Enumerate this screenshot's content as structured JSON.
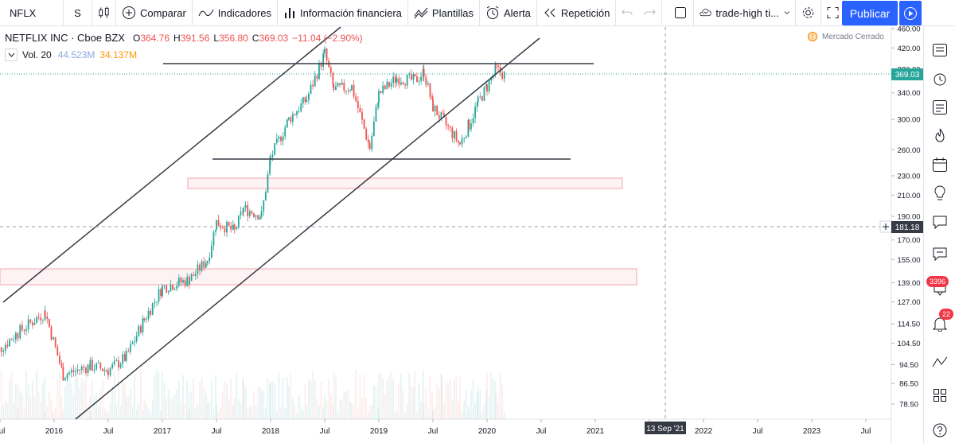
{
  "toolbar": {
    "symbol": "NFLX",
    "interval": "S",
    "compare": "Comparar",
    "indicators": "Indicadores",
    "financials": "Información financiera",
    "templates": "Plantillas",
    "alert": "Alerta",
    "replay": "Repetición",
    "layout_name": "trade-high ti...",
    "publish": "Publicar"
  },
  "legend": {
    "title": "NETFLIX INC · Cboe BZX",
    "open_label": "O",
    "open": "364.76",
    "high_label": "H",
    "high": "391.56",
    "low_label": "L",
    "low": "356.80",
    "close_label": "C",
    "close": "369.03",
    "change": "−11.04 (−2.90%)",
    "volume_label": "Vol. 20",
    "volume_value": "44.523M",
    "volume_ma": "34.137M"
  },
  "market_status": "Mercado Cerrado",
  "price_axis": {
    "ticks": [
      "460.00",
      "420.00",
      "380.00",
      "340.00",
      "300.00",
      "260.00",
      "230.00",
      "210.00",
      "190.00",
      "170.00",
      "155.00",
      "139.00",
      "127.00",
      "114.50",
      "104.50",
      "94.50",
      "86.50",
      "78.50"
    ],
    "last_price": "369.03",
    "crosshair_price": "181.18"
  },
  "time_axis": {
    "ticks": [
      "Jul",
      "2016",
      "Jul",
      "2017",
      "Jul",
      "2018",
      "Jul",
      "2019",
      "Jul",
      "2020",
      "Jul",
      "2021",
      "Jul",
      "2022",
      "Jul",
      "2023",
      "Jul"
    ],
    "crosshair_date": "13 Sep '21"
  },
  "sidebar": {
    "ideas_badge": "3396",
    "notifications_badge": "22"
  },
  "colors": {
    "up": "#26a69a",
    "down": "#ef5350",
    "accent": "#2962ff",
    "last_price_label": "#26a69a"
  },
  "chart_data": {
    "type": "candlestick",
    "symbol": "NFLX",
    "interval": "weekly",
    "scale": "log",
    "ylim": [
      75,
      470
    ],
    "x_range": [
      "2015-06",
      "2023-08"
    ],
    "last": {
      "open": 364.76,
      "high": 391.56,
      "low": 356.8,
      "close": 369.03
    },
    "price_path": [
      {
        "date": "2015-06",
        "price": 98
      },
      {
        "date": "2015-09",
        "price": 110
      },
      {
        "date": "2015-12",
        "price": 121
      },
      {
        "date": "2016-02",
        "price": 90
      },
      {
        "date": "2016-05",
        "price": 94
      },
      {
        "date": "2016-07",
        "price": 92
      },
      {
        "date": "2016-09",
        "price": 98
      },
      {
        "date": "2016-11",
        "price": 117
      },
      {
        "date": "2017-01",
        "price": 136
      },
      {
        "date": "2017-04",
        "price": 141
      },
      {
        "date": "2017-06",
        "price": 155
      },
      {
        "date": "2017-07",
        "price": 185
      },
      {
        "date": "2017-09",
        "price": 177
      },
      {
        "date": "2017-10",
        "price": 197
      },
      {
        "date": "2017-12",
        "price": 191
      },
      {
        "date": "2018-01",
        "price": 250
      },
      {
        "date": "2018-03",
        "price": 300
      },
      {
        "date": "2018-05",
        "price": 330
      },
      {
        "date": "2018-07",
        "price": 410
      },
      {
        "date": "2018-08",
        "price": 345
      },
      {
        "date": "2018-10",
        "price": 350
      },
      {
        "date": "2018-12",
        "price": 262
      },
      {
        "date": "2019-01",
        "price": 338
      },
      {
        "date": "2019-03",
        "price": 365
      },
      {
        "date": "2019-05",
        "price": 360
      },
      {
        "date": "2019-06",
        "price": 375
      },
      {
        "date": "2019-07",
        "price": 318
      },
      {
        "date": "2019-08",
        "price": 300
      },
      {
        "date": "2019-10",
        "price": 267
      },
      {
        "date": "2019-11",
        "price": 293
      },
      {
        "date": "2019-12",
        "price": 325
      },
      {
        "date": "2020-01",
        "price": 350
      },
      {
        "date": "2020-02",
        "price": 380
      },
      {
        "date": "2020-03",
        "price": 369
      }
    ]
  }
}
